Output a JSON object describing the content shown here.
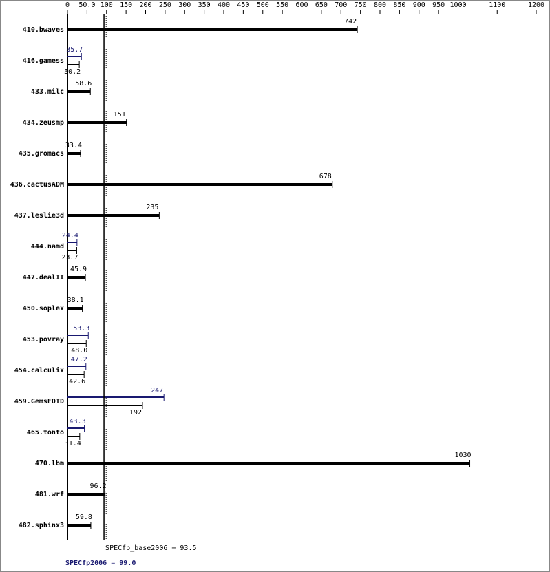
{
  "chart_data": {
    "type": "bar",
    "categories": [
      "410.bwaves",
      "416.gamess",
      "433.milc",
      "434.zeusmp",
      "435.gromacs",
      "436.cactusADM",
      "437.leslie3d",
      "444.namd",
      "447.dealII",
      "450.soplex",
      "453.povray",
      "454.calculix",
      "459.GemsFDTD",
      "465.tonto",
      "470.lbm",
      "481.wrf",
      "482.sphinx3"
    ],
    "series": [
      {
        "color": "#000000",
        "values": [
          742,
          30.2,
          58.6,
          151,
          33.4,
          678,
          235,
          23.7,
          45.9,
          38.1,
          48.0,
          42.6,
          192,
          31.4,
          1030,
          96.2,
          59.8
        ],
        "value_labels": [
          "742",
          "30.2",
          "58.6",
          "151",
          "33.4",
          "678",
          "235",
          "23.7",
          "45.9",
          "38.1",
          "48.0",
          "42.6",
          "192",
          "31.4",
          "1030",
          "96.2",
          "59.8"
        ]
      },
      {
        "color": "#191970",
        "values": [
          null,
          35.7,
          null,
          null,
          null,
          null,
          null,
          24.4,
          null,
          null,
          53.3,
          47.2,
          247,
          43.3,
          null,
          null,
          null
        ]
      }
    ],
    "xlim": [
      0,
      1200
    ],
    "xticks": [
      0,
      {
        "value": 50,
        "label": "50.0"
      },
      100,
      150,
      200,
      250,
      300,
      350,
      400,
      450,
      500,
      550,
      600,
      650,
      700,
      750,
      800,
      850,
      900,
      950,
      1000,
      1100,
      1200
    ],
    "base_mean": 93.5,
    "peak_mean": 99.0,
    "base_mean_label": "SPECfp_base2006 = 93.5",
    "peak_mean_label": "SPECfp2006 = 99.0"
  }
}
